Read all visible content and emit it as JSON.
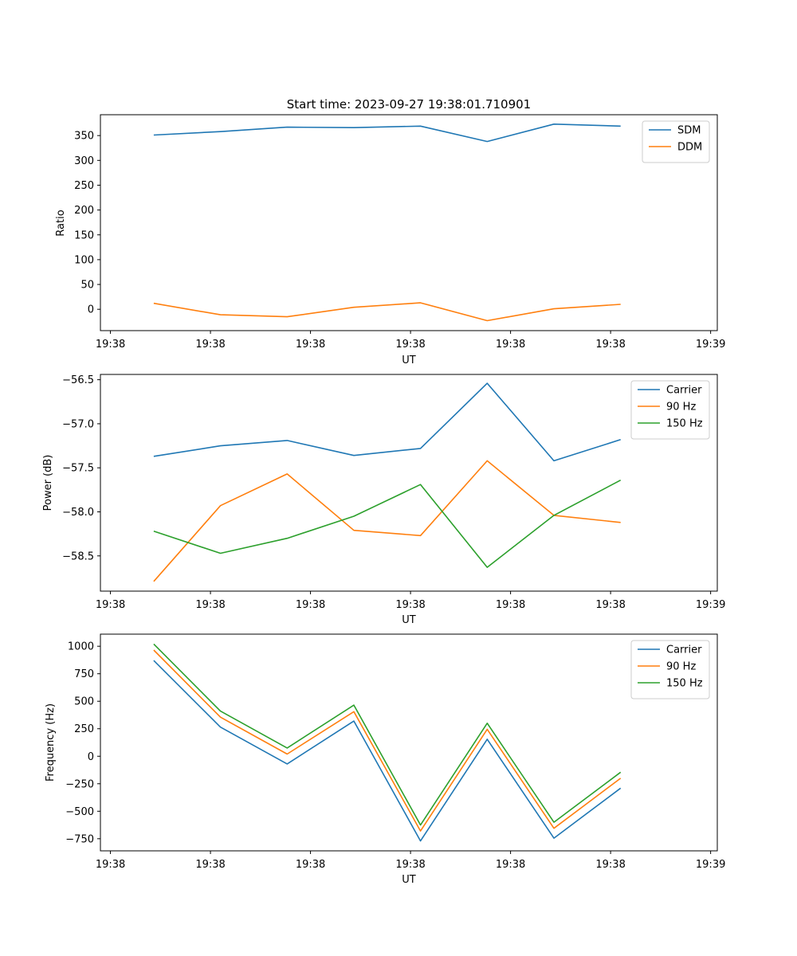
{
  "figure_title": "Start time: 2023-09-27 19:38:01.710901",
  "colors": {
    "blue": "#1f77b4",
    "orange": "#ff7f0e",
    "green": "#2ca02c"
  },
  "chart_data": [
    {
      "type": "line",
      "title": "Start time: 2023-09-27 19:38:01.710901",
      "xlabel": "UT",
      "ylabel": "Ratio",
      "x": [
        1,
        2,
        3,
        4,
        5,
        6,
        7,
        8
      ],
      "xlim": [
        0.2,
        9.45
      ],
      "x_ticks": [
        0.35,
        1.85,
        3.35,
        4.85,
        6.35,
        7.85,
        9.35
      ],
      "x_tick_labels": [
        "19:38",
        "19:38",
        "19:38",
        "19:38",
        "19:38",
        "19:38",
        "19:39"
      ],
      "ylim": [
        -43,
        392
      ],
      "y_ticks": [
        0,
        50,
        100,
        150,
        200,
        250,
        300,
        350
      ],
      "y_tick_labels": [
        "0",
        "50",
        "100",
        "150",
        "200",
        "250",
        "300",
        "350"
      ],
      "series": [
        {
          "name": "SDM",
          "color": "#1f77b4",
          "values": [
            351,
            358,
            367,
            366,
            369,
            338,
            373,
            369
          ]
        },
        {
          "name": "DDM",
          "color": "#ff7f0e",
          "values": [
            12,
            -11,
            -15,
            4,
            13,
            -23,
            1,
            10
          ]
        }
      ],
      "legend_position": "top-right",
      "grid": false
    },
    {
      "type": "line",
      "title": "",
      "xlabel": "UT",
      "ylabel": "Power (dB)",
      "x": [
        1,
        2,
        3,
        4,
        5,
        6,
        7,
        8
      ],
      "xlim": [
        0.2,
        9.45
      ],
      "x_ticks": [
        0.35,
        1.85,
        3.35,
        4.85,
        6.35,
        7.85,
        9.35
      ],
      "x_tick_labels": [
        "19:38",
        "19:38",
        "19:38",
        "19:38",
        "19:38",
        "19:38",
        "19:39"
      ],
      "ylim": [
        -58.9,
        -56.44
      ],
      "y_ticks": [
        -58.5,
        -58.0,
        -57.5,
        -57.0,
        -56.5
      ],
      "y_tick_labels": [
        "−58.5",
        "−58.0",
        "−57.5",
        "−57.0",
        "−56.5"
      ],
      "series": [
        {
          "name": "Carrier",
          "color": "#1f77b4",
          "values": [
            -57.37,
            -57.25,
            -57.19,
            -57.36,
            -57.28,
            -56.54,
            -57.42,
            -57.18
          ]
        },
        {
          "name": "90 Hz",
          "color": "#ff7f0e",
          "values": [
            -58.79,
            -57.93,
            -57.57,
            -58.21,
            -58.27,
            -57.42,
            -58.04,
            -58.12
          ]
        },
        {
          "name": "150 Hz",
          "color": "#2ca02c",
          "values": [
            -58.22,
            -58.47,
            -58.3,
            -58.05,
            -57.69,
            -58.63,
            -58.04,
            -57.64
          ]
        }
      ],
      "legend_position": "top-right",
      "grid": false
    },
    {
      "type": "line",
      "title": "",
      "xlabel": "UT",
      "ylabel": "Frequency (Hz)",
      "x": [
        1,
        2,
        3,
        4,
        5,
        6,
        7,
        8
      ],
      "xlim": [
        0.2,
        9.45
      ],
      "x_ticks": [
        0.35,
        1.85,
        3.35,
        4.85,
        6.35,
        7.85,
        9.35
      ],
      "x_tick_labels": [
        "19:38",
        "19:38",
        "19:38",
        "19:38",
        "19:38",
        "19:38",
        "19:39"
      ],
      "ylim": [
        -860,
        1110
      ],
      "y_ticks": [
        -750,
        -500,
        -250,
        0,
        250,
        500,
        750,
        1000
      ],
      "y_tick_labels": [
        "−750",
        "−500",
        "−250",
        "0",
        "250",
        "500",
        "750",
        "1000"
      ],
      "series": [
        {
          "name": "Carrier",
          "color": "#1f77b4",
          "values": [
            870,
            265,
            -70,
            320,
            -770,
            155,
            -745,
            -290
          ]
        },
        {
          "name": "90 Hz",
          "color": "#ff7f0e",
          "values": [
            965,
            355,
            20,
            405,
            -680,
            245,
            -655,
            -200
          ]
        },
        {
          "name": "150 Hz",
          "color": "#2ca02c",
          "values": [
            1020,
            410,
            75,
            465,
            -625,
            300,
            -600,
            -145
          ]
        }
      ],
      "legend_position": "top-right",
      "grid": false
    }
  ]
}
